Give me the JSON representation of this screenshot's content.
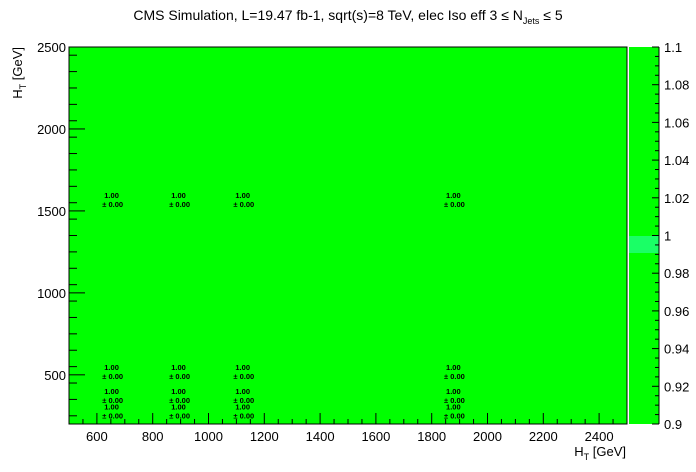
{
  "chart_data": {
    "type": "heatmap",
    "title": "CMS Simulation, L=19.47 fb-1, sqrt(s)=8 TeV, elec Iso eff 3 ≤ N",
    "title_sub": "Jets",
    "title_tail": " ≤ 5",
    "xlabel": "H",
    "xlabel_sub": "T",
    "xlabel_tail": " [GeV]",
    "ylabel": "H",
    "ylabel_sub": "T",
    "ylabel_tail": " [GeV]",
    "xlim": [
      500,
      2500
    ],
    "ylim": [
      200,
      2500
    ],
    "x_ticks": [
      600,
      800,
      1000,
      1200,
      1400,
      1600,
      1800,
      2000,
      2200,
      2400
    ],
    "y_ticks": [
      500,
      1000,
      1500,
      2000,
      2500
    ],
    "z_range": [
      0.9,
      1.1
    ],
    "z_ticks": [
      "0.9",
      "0.92",
      "0.94",
      "0.96",
      "0.98",
      "1",
      "1.02",
      "1.04",
      "1.06",
      "1.08",
      "1.1"
    ],
    "fill_color": "#00ff00",
    "marker_color": "#1aff66",
    "cells": [
      {
        "x": 630,
        "y": 1535,
        "value": "1.00",
        "error": "±  0.00"
      },
      {
        "x": 870,
        "y": 1535,
        "value": "1.00",
        "error": "±  0.00"
      },
      {
        "x": 1100,
        "y": 1535,
        "value": "1.00",
        "error": "±  0.00"
      },
      {
        "x": 1855,
        "y": 1535,
        "value": "1.00",
        "error": "±  0.00"
      },
      {
        "x": 630,
        "y": 487,
        "value": "1.00",
        "error": "±  0.00"
      },
      {
        "x": 870,
        "y": 487,
        "value": "1.00",
        "error": "±  0.00"
      },
      {
        "x": 1100,
        "y": 487,
        "value": "1.00",
        "error": "±  0.00"
      },
      {
        "x": 1855,
        "y": 487,
        "value": "1.00",
        "error": "±  0.00"
      },
      {
        "x": 630,
        "y": 340,
        "value": "1.00",
        "error": "±  0.00"
      },
      {
        "x": 870,
        "y": 340,
        "value": "1.00",
        "error": "±  0.00"
      },
      {
        "x": 1100,
        "y": 340,
        "value": "1.00",
        "error": "±  0.00"
      },
      {
        "x": 1855,
        "y": 340,
        "value": "1.00",
        "error": "±  0.00"
      },
      {
        "x": 630,
        "y": 247,
        "value": "1.00",
        "error": "± 0.00"
      },
      {
        "x": 870,
        "y": 247,
        "value": "1.00",
        "error": "± 0.00"
      },
      {
        "x": 1100,
        "y": 247,
        "value": "1.00",
        "error": "± 0.00"
      },
      {
        "x": 1855,
        "y": 247,
        "value": "1.00",
        "error": "± 0.00"
      }
    ]
  }
}
